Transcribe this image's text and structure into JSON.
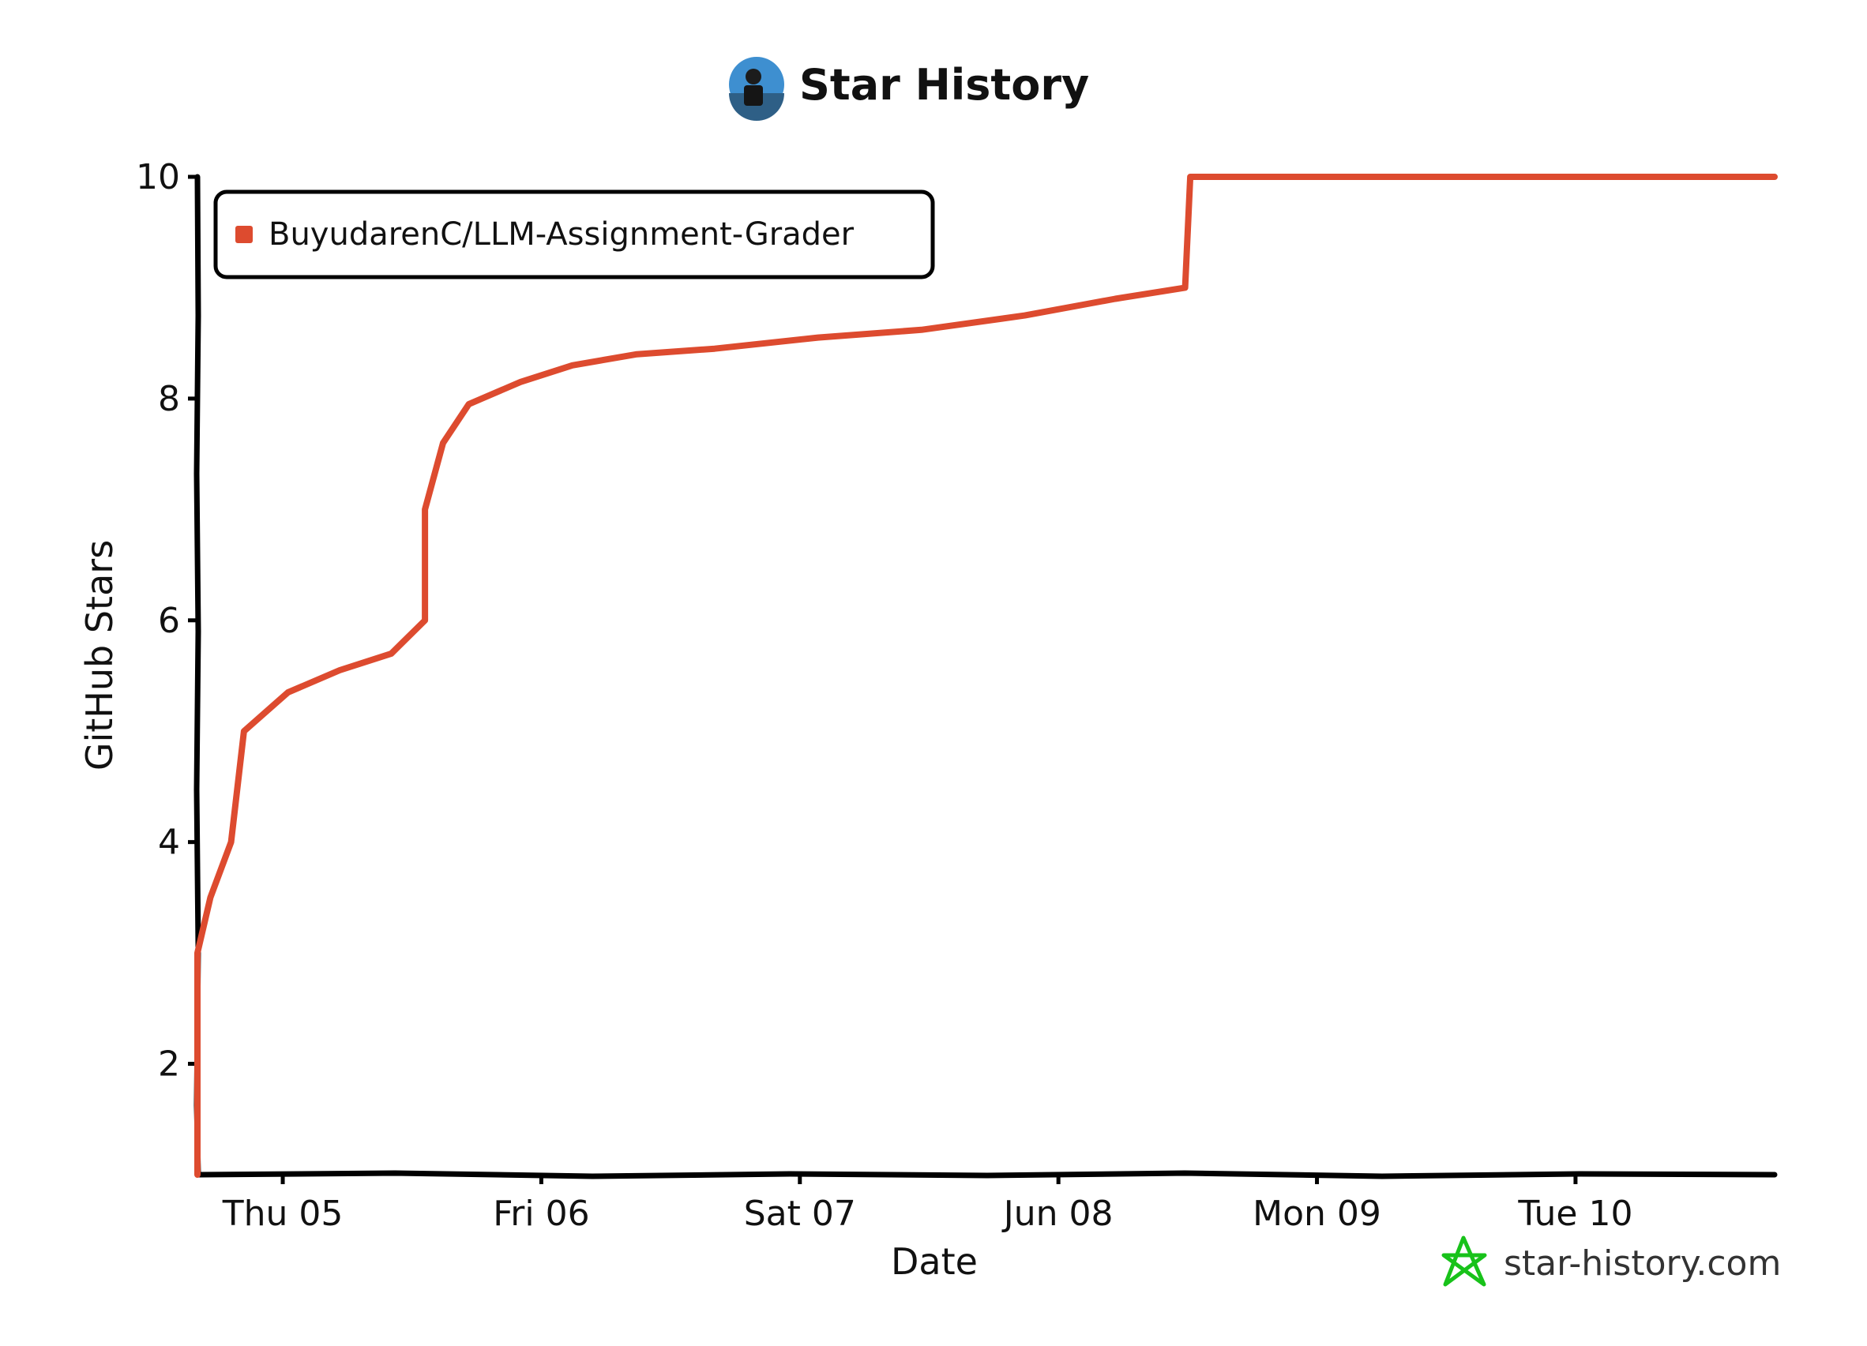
{
  "page": {
    "title": "Star History"
  },
  "watermark": {
    "text": "star-history.com"
  },
  "colors": {
    "series": "#dd4b2f",
    "axis": "#000000",
    "brand": "#18c21a"
  },
  "chart_data": {
    "type": "line",
    "title": "Star History",
    "xlabel": "Date",
    "ylabel": "GitHub Stars",
    "x_ticks": [
      "Thu 05",
      "Fri 06",
      "Sat 07",
      "Jun 08",
      "Mon 09",
      "Tue 10"
    ],
    "x_tick_day": [
      5.33,
      6.33,
      7.33,
      8.33,
      9.33,
      10.33
    ],
    "xlim_day": [
      5.0,
      11.1
    ],
    "ylim": [
      1,
      10
    ],
    "y_ticks": [
      2,
      4,
      6,
      8,
      10
    ],
    "legend_position": "top-left",
    "grid": false,
    "series": [
      {
        "name": "BuyudarenC/LLM-Assignment-Grader",
        "points": [
          {
            "day": 5.0,
            "stars": 1
          },
          {
            "day": 5.0,
            "stars": 3
          },
          {
            "day": 5.05,
            "stars": 3.5
          },
          {
            "day": 5.13,
            "stars": 4
          },
          {
            "day": 5.18,
            "stars": 5
          },
          {
            "day": 5.35,
            "stars": 5.35
          },
          {
            "day": 5.55,
            "stars": 5.55
          },
          {
            "day": 5.75,
            "stars": 5.7
          },
          {
            "day": 5.88,
            "stars": 6
          },
          {
            "day": 5.88,
            "stars": 7
          },
          {
            "day": 5.95,
            "stars": 7.6
          },
          {
            "day": 6.05,
            "stars": 7.95
          },
          {
            "day": 6.25,
            "stars": 8.15
          },
          {
            "day": 6.45,
            "stars": 8.3
          },
          {
            "day": 6.7,
            "stars": 8.4
          },
          {
            "day": 7.0,
            "stars": 8.45
          },
          {
            "day": 7.4,
            "stars": 8.55
          },
          {
            "day": 7.8,
            "stars": 8.62
          },
          {
            "day": 8.2,
            "stars": 8.75
          },
          {
            "day": 8.55,
            "stars": 8.9
          },
          {
            "day": 8.82,
            "stars": 9
          },
          {
            "day": 8.84,
            "stars": 10
          },
          {
            "day": 11.1,
            "stars": 10
          }
        ]
      }
    ]
  }
}
